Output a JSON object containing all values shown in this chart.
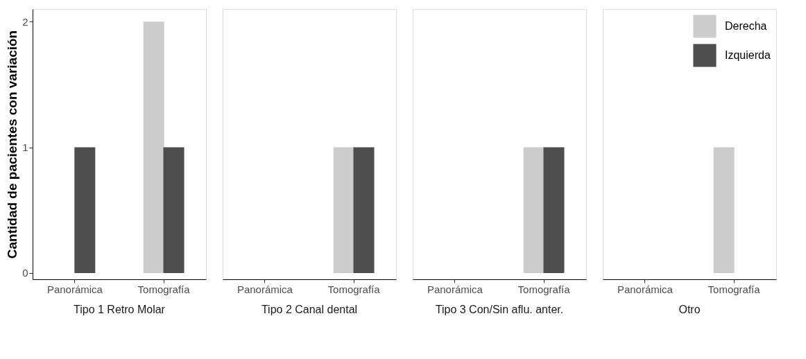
{
  "chart_data": [
    {
      "type": "bar",
      "title": "Tipo 1 Retro Molar",
      "ylabel": "Cantidad de pacientes con variación",
      "categories": [
        "Panorámica",
        "Tomografía"
      ],
      "ylim": [
        -0.05,
        2.1
      ],
      "yticks": [
        0,
        1,
        2
      ],
      "series": [
        {
          "color": "#cccccc",
          "values": [
            0,
            2
          ]
        },
        {
          "color": "#4d4d4d",
          "values": [
            1,
            1
          ]
        }
      ]
    },
    {
      "type": "bar",
      "title": "Tipo 2 Canal dental",
      "categories": [
        "Panorámica",
        "Tomografía"
      ],
      "ylim": [
        -0.05,
        2.1
      ],
      "yticks": [
        0,
        1,
        2
      ],
      "tick_labels": "x",
      "series": [
        {
          "color": "#cccccc",
          "values": [
            0,
            1
          ]
        },
        {
          "color": "#4d4d4d",
          "values": [
            0,
            1
          ]
        }
      ]
    },
    {
      "type": "bar",
      "title": "Tipo 3 Con/Sin aflu. anter.",
      "categories": [
        "Panorámica",
        "Tomografía"
      ],
      "ylim": [
        -0.05,
        2.1
      ],
      "yticks": [
        0,
        1,
        2
      ],
      "tick_labels": "x",
      "series": [
        {
          "color": "#cccccc",
          "values": [
            0,
            1
          ]
        },
        {
          "color": "#4d4d4d",
          "values": [
            0,
            1
          ]
        }
      ]
    },
    {
      "type": "bar",
      "title": "Otro",
      "categories": [
        "Panorámica",
        "Tomografía"
      ],
      "ylim": [
        -0.05,
        2.1
      ],
      "yticks": [
        0,
        1,
        2
      ],
      "tick_labels": "x",
      "legend": "top right",
      "series": [
        {
          "name": "Derecha",
          "color": "#cccccc",
          "values": [
            0,
            1
          ]
        },
        {
          "name": "Izquierda",
          "color": "#4d4d4d",
          "values": [
            0,
            0
          ]
        }
      ]
    }
  ]
}
